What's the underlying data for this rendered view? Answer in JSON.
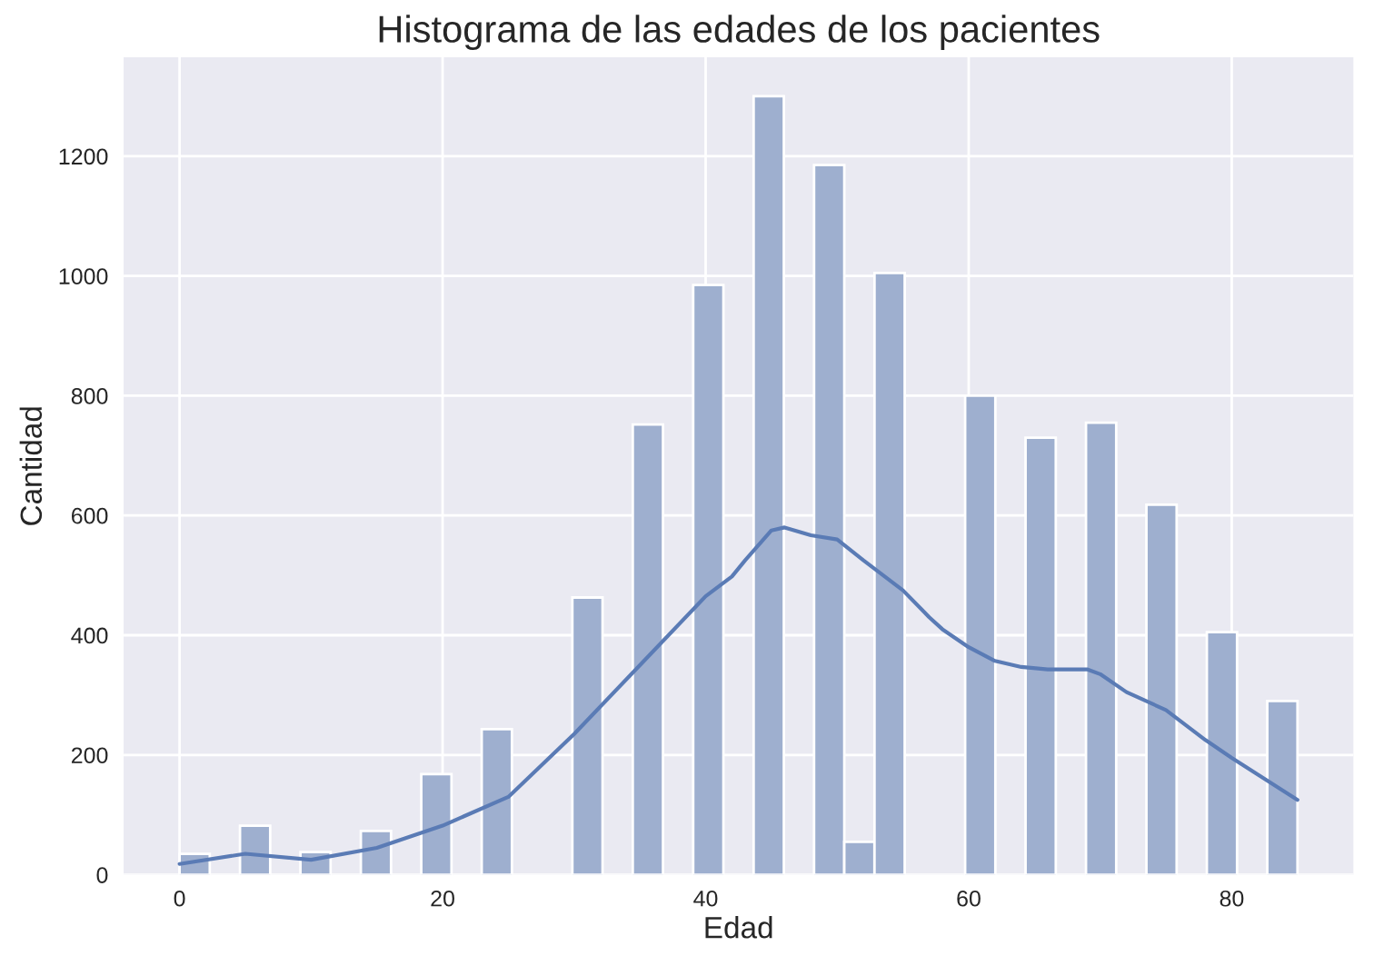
{
  "chart_data": {
    "type": "histogram",
    "title": "Histograma de las edades de los pacientes",
    "xlabel": "Edad",
    "ylabel": "Cantidad",
    "bins": [
      0,
      2.297,
      4.595,
      6.892,
      9.189,
      11.486,
      13.784,
      16.081,
      18.378,
      20.676,
      22.973,
      25.27,
      27.568,
      29.865,
      32.162,
      34.459,
      36.757,
      39.054,
      41.351,
      43.649,
      45.946,
      48.243,
      50.541,
      52.838,
      55.135,
      57.432,
      59.73,
      62.027,
      64.324,
      66.622,
      68.919,
      71.216,
      73.514,
      75.811,
      78.108,
      80.405,
      82.703,
      85
    ],
    "series": [
      {
        "color": "#9eafcf",
        "values": [
          35,
          0,
          82,
          0,
          38,
          0,
          73,
          0,
          168,
          0,
          243,
          0,
          0,
          463,
          0,
          752,
          0,
          985,
          0,
          1300,
          0,
          1185,
          55,
          1005,
          0,
          0,
          800,
          0,
          730,
          0,
          755,
          0,
          618,
          0,
          405,
          0,
          290
        ]
      },
      {
        "type": "line",
        "color": "#5a7bb5",
        "x": [
          0,
          5,
          10,
          15,
          20,
          25,
          30,
          35,
          40,
          42,
          43,
          45,
          46,
          48,
          50,
          52,
          55,
          57,
          58,
          60,
          62,
          64,
          66,
          69,
          70,
          72,
          75,
          78,
          80,
          85
        ],
        "values": [
          18,
          35,
          25,
          45,
          82,
          130,
          235,
          350,
          465,
          498,
          525,
          575,
          580,
          567,
          560,
          525,
          475,
          430,
          410,
          380,
          357,
          347,
          343,
          343,
          335,
          305,
          275,
          225,
          195,
          125
        ]
      }
    ],
    "xlim": [
      -4.25,
      89.25
    ],
    "xticks": [
      0,
      20,
      40,
      60,
      80
    ],
    "ylim": [
      0,
      1365
    ],
    "yticks": [
      0,
      200,
      400,
      600,
      800,
      1000,
      1200
    ],
    "grid": true
  }
}
